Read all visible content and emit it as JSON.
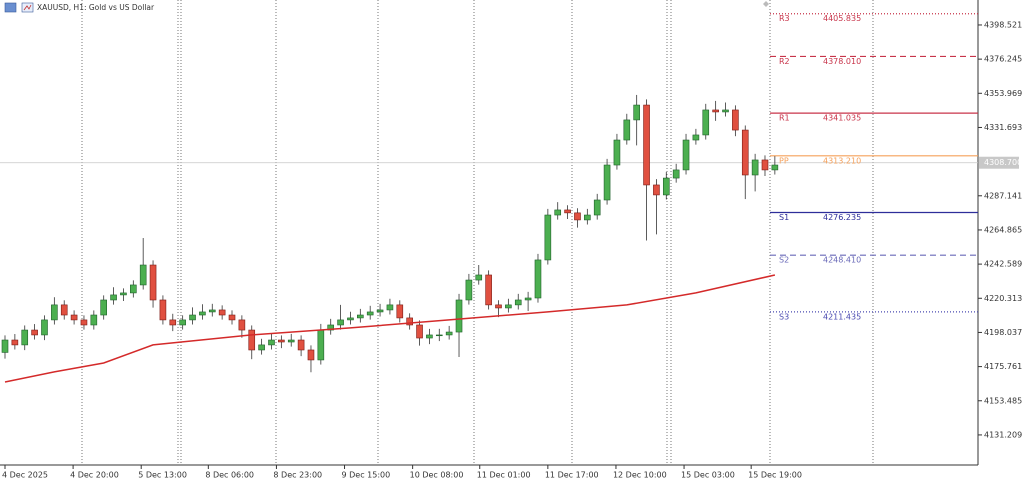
{
  "chart_data": {
    "type": "candlestick",
    "title": "XAUUSD, H1:  Gold vs US Dollar",
    "ylim": [
      4111.6,
      4414.8
    ],
    "yticks": [
      4398.521,
      4376.245,
      4353.969,
      4331.693,
      4287.141,
      4264.865,
      4242.589,
      4220.313,
      4198.037,
      4175.761,
      4153.485,
      4131.209
    ],
    "xticks": [
      {
        "value": 0,
        "label": "4 Dec 2025"
      },
      {
        "value": 6.9,
        "label": "4 Dec 20:00"
      },
      {
        "value": 13.8,
        "label": "5 Dec 13:00"
      },
      {
        "value": 20.6,
        "label": "8 Dec 06:00"
      },
      {
        "value": 27.5,
        "label": "8 Dec 23:00"
      },
      {
        "value": 34.4,
        "label": "9 Dec 15:00"
      },
      {
        "value": 41.3,
        "label": "10 Dec 08:00"
      },
      {
        "value": 48.1,
        "label": "11 Dec 01:00"
      },
      {
        "value": 55.0,
        "label": "11 Dec 17:00"
      },
      {
        "value": 61.9,
        "label": "12 Dec 10:00"
      },
      {
        "value": 68.8,
        "label": "15 Dec 03:00"
      },
      {
        "value": 75.6,
        "label": "15 Dec 19:00"
      }
    ],
    "bull_color": "#4caf50",
    "bear_color": "#e05040",
    "candles": [
      [
        4185.0,
        4196.1,
        4181.0,
        4193.1
      ],
      [
        4193.1,
        4197.0,
        4186.9,
        4189.9
      ],
      [
        4189.9,
        4202.6,
        4186.5,
        4199.6
      ],
      [
        4199.6,
        4203.5,
        4193.4,
        4196.4
      ],
      [
        4196.4,
        4209.2,
        4193.0,
        4206.2
      ],
      [
        4206.2,
        4221.0,
        4203.2,
        4216.0
      ],
      [
        4216.0,
        4219.0,
        4206.4,
        4209.4
      ],
      [
        4209.4,
        4212.4,
        4203.2,
        4206.2
      ],
      [
        4206.2,
        4209.2,
        4199.9,
        4202.9
      ],
      [
        4202.9,
        4212.4,
        4199.9,
        4209.4
      ],
      [
        4209.4,
        4222.2,
        4206.4,
        4219.2
      ],
      [
        4219.2,
        4227.5,
        4216.2,
        4222.5
      ],
      [
        4222.5,
        4226.8,
        4218.5,
        4223.8
      ],
      [
        4223.8,
        4232.0,
        4220.8,
        4229.0
      ],
      [
        4229.0,
        4259.6,
        4226.0,
        4242.0
      ],
      [
        4242.0,
        4245.0,
        4214.2,
        4219.2
      ],
      [
        4219.2,
        4222.2,
        4203.2,
        4206.2
      ],
      [
        4206.2,
        4210.2,
        4198.9,
        4202.9
      ],
      [
        4202.9,
        4209.2,
        4199.9,
        4206.2
      ],
      [
        4206.2,
        4214.4,
        4203.2,
        4209.4
      ],
      [
        4209.4,
        4216.4,
        4206.4,
        4211.4
      ],
      [
        4211.4,
        4216.7,
        4208.4,
        4212.7
      ],
      [
        4212.7,
        4215.7,
        4206.4,
        4209.4
      ],
      [
        4209.4,
        4212.4,
        4203.2,
        4206.2
      ],
      [
        4206.2,
        4209.2,
        4194.6,
        4199.6
      ],
      [
        4199.6,
        4202.6,
        4180.6,
        4186.6
      ],
      [
        4186.6,
        4193.9,
        4183.6,
        4189.9
      ],
      [
        4189.9,
        4197.1,
        4186.9,
        4193.1
      ],
      [
        4193.1,
        4196.1,
        4187.8,
        4191.8
      ],
      [
        4191.8,
        4197.1,
        4188.8,
        4193.1
      ],
      [
        4193.1,
        4196.1,
        4182.6,
        4186.6
      ],
      [
        4186.6,
        4189.6,
        4172.1,
        4180.1
      ],
      [
        4180.1,
        4203.6,
        4177.1,
        4199.6
      ],
      [
        4199.6,
        4206.9,
        4196.6,
        4202.9
      ],
      [
        4202.9,
        4216.0,
        4199.9,
        4206.2
      ],
      [
        4206.2,
        4211.5,
        4203.2,
        4207.5
      ],
      [
        4207.5,
        4213.4,
        4204.5,
        4209.4
      ],
      [
        4209.4,
        4215.4,
        4206.4,
        4211.4
      ],
      [
        4211.4,
        4216.7,
        4208.4,
        4212.7
      ],
      [
        4212.7,
        4220.0,
        4209.7,
        4216.0
      ],
      [
        4216.0,
        4219.0,
        4204.5,
        4207.5
      ],
      [
        4207.5,
        4210.5,
        4199.9,
        4202.9
      ],
      [
        4202.9,
        4205.9,
        4189.4,
        4194.4
      ],
      [
        4194.4,
        4200.4,
        4190.4,
        4196.4
      ],
      [
        4196.4,
        4200.4,
        4192.4,
        4196.4
      ],
      [
        4196.4,
        4202.3,
        4193.4,
        4198.3
      ],
      [
        4198.3,
        4223.2,
        4182.0,
        4219.2
      ],
      [
        4219.2,
        4236.2,
        4216.2,
        4232.2
      ],
      [
        4232.2,
        4242.0,
        4229.2,
        4235.5
      ],
      [
        4235.5,
        4238.5,
        4213.0,
        4216.0
      ],
      [
        4216.0,
        4219.0,
        4208.0,
        4214.0
      ],
      [
        4214.0,
        4220.0,
        4211.0,
        4216.0
      ],
      [
        4216.0,
        4223.2,
        4213.0,
        4219.2
      ],
      [
        4219.2,
        4224.5,
        4212.0,
        4220.5
      ],
      [
        4220.5,
        4249.3,
        4217.5,
        4245.3
      ],
      [
        4245.3,
        4278.6,
        4242.3,
        4274.6
      ],
      [
        4274.6,
        4283.0,
        4271.6,
        4277.9
      ],
      [
        4277.9,
        4281.0,
        4272.0,
        4276.0
      ],
      [
        4276.0,
        4279.0,
        4266.4,
        4271.4
      ],
      [
        4271.4,
        4278.6,
        4268.4,
        4274.6
      ],
      [
        4274.6,
        4288.4,
        4271.6,
        4284.4
      ],
      [
        4284.4,
        4311.2,
        4281.4,
        4307.2
      ],
      [
        4307.2,
        4327.5,
        4304.2,
        4323.5
      ],
      [
        4323.5,
        4340.6,
        4320.5,
        4336.6
      ],
      [
        4336.6,
        4352.9,
        4320.0,
        4346.3
      ],
      [
        4346.3,
        4350.0,
        4258.0,
        4294.2
      ],
      [
        4294.2,
        4298.0,
        4262.0,
        4287.7
      ],
      [
        4287.7,
        4302.7,
        4284.7,
        4298.7
      ],
      [
        4298.7,
        4308.0,
        4295.7,
        4304.0
      ],
      [
        4304.0,
        4327.5,
        4301.0,
        4323.5
      ],
      [
        4323.5,
        4330.8,
        4320.5,
        4326.8
      ],
      [
        4326.8,
        4347.1,
        4323.8,
        4343.1
      ],
      [
        4343.1,
        4349.0,
        4336.0,
        4341.8
      ],
      [
        4341.8,
        4348.0,
        4338.8,
        4343.1
      ],
      [
        4343.1,
        4346.1,
        4326.0,
        4330.0
      ],
      [
        4330.0,
        4333.0,
        4285.0,
        4300.7
      ],
      [
        4300.7,
        4314.5,
        4290.0,
        4310.5
      ],
      [
        4310.5,
        4313.5,
        4300.0,
        4304.0
      ],
      [
        4304.0,
        4313.0,
        4301.0,
        4307.2
      ]
    ],
    "moving_average": {
      "color": "#d42a2a",
      "x": [
        0,
        5,
        10,
        15,
        25,
        35,
        45,
        55,
        63,
        70,
        78
      ],
      "values": [
        4165.7,
        4172.3,
        4178.1,
        4189.9,
        4196.4,
        4201.0,
        4206.2,
        4211.4,
        4216.0,
        4223.8,
        4235.5
      ]
    },
    "current_price": {
      "value": 4308.7,
      "label": "4308.700"
    },
    "pivots": [
      {
        "name": "R3",
        "value": 4405.835,
        "value_label": "4405.835",
        "color": "#c8344a",
        "style": "dotted"
      },
      {
        "name": "R2",
        "value": 4378.01,
        "value_label": "4378.010",
        "color": "#c8344a",
        "style": "dashed"
      },
      {
        "name": "R1",
        "value": 4341.035,
        "value_label": "4341.035",
        "color": "#c8344a",
        "style": "solid"
      },
      {
        "name": "PP",
        "value": 4313.21,
        "value_label": "4313.210",
        "color": "#f5a05a",
        "style": "solid"
      },
      {
        "name": "S1",
        "value": 4276.235,
        "value_label": "4276.235",
        "color": "#2e2e9a",
        "style": "solid"
      },
      {
        "name": "S2",
        "value": 4248.41,
        "value_label": "4248.410",
        "color": "#6a6ab8",
        "style": "dashed"
      },
      {
        "name": "S3",
        "value": 4211.435,
        "value_label": "4211.435",
        "color": "#4a4ab0",
        "style": "dotted"
      }
    ]
  }
}
